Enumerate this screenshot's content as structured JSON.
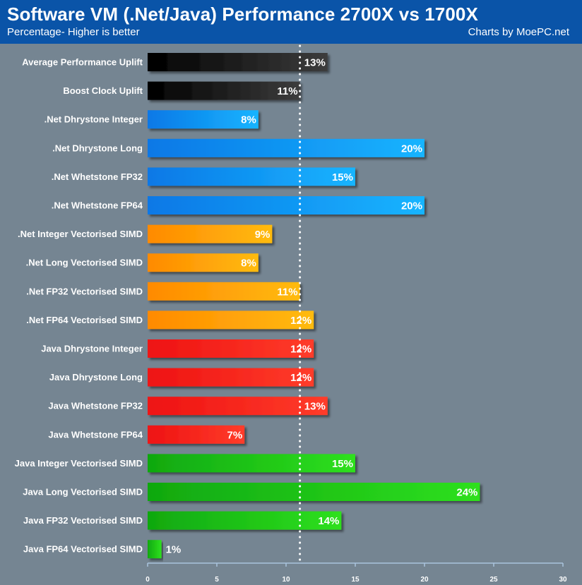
{
  "header": {
    "title": "Software VM (.Net/Java) Performance 2700X vs 1700X",
    "subtitle": "Percentage- Higher is better",
    "credit": "Charts by MoePC.net"
  },
  "colors": {
    "header_background": "#0a54a8",
    "plot_background": "#758592",
    "reference_line": "#ffffff",
    "axis": "#a9c3dc"
  },
  "chart_data": {
    "type": "bar",
    "orientation": "horizontal",
    "title": "Software VM (.Net/Java) Performance 2700X vs 1700X",
    "subtitle": "Percentage- Higher is better",
    "xlabel": "",
    "ylabel": "",
    "xlim": [
      0,
      30
    ],
    "xticks": [
      0,
      5,
      10,
      15,
      20,
      25,
      30
    ],
    "grid": false,
    "reference_line": {
      "value": 11,
      "style": "dotted"
    },
    "value_suffix": "%",
    "categories": [
      "Average Performance Uplift",
      "Boost Clock Uplift",
      ".Net Dhrystone Integer",
      ".Net Dhrystone Long",
      ".Net Whetstone FP32",
      ".Net Whetstone FP64",
      ".Net Integer Vectorised SIMD",
      ".Net Long Vectorised SIMD",
      ".Net FP32 Vectorised SIMD",
      ".Net FP64 Vectorised SIMD",
      "Java Dhrystone Integer",
      "Java Dhrystone Long",
      "Java Whetstone FP32",
      "Java Whetstone FP64",
      "Java Integer Vectorised SIMD",
      "Java Long Vectorised SIMD",
      "Java FP32 Vectorised SIMD",
      "Java FP64 Vectorised SIMD"
    ],
    "values": [
      13,
      11,
      8,
      20,
      15,
      20,
      9,
      8,
      11,
      12,
      12,
      12,
      13,
      7,
      15,
      24,
      14,
      1
    ],
    "bar_groups": [
      "summary",
      "summary",
      "net",
      "net",
      "net",
      "net",
      "net-simd",
      "net-simd",
      "net-simd",
      "net-simd",
      "java",
      "java",
      "java",
      "java",
      "java-simd",
      "java-simd",
      "java-simd",
      "java-simd"
    ],
    "group_colors": {
      "summary": [
        "#000000",
        "#3c3c3c"
      ],
      "net": [
        "#0a78e6",
        "#17b4ff"
      ],
      "net-simd": [
        "#ff8a00",
        "#ffbb10"
      ],
      "java": [
        "#ee1212",
        "#ff3c2a"
      ],
      "java-simd": [
        "#10a810",
        "#2ee01e"
      ]
    }
  }
}
